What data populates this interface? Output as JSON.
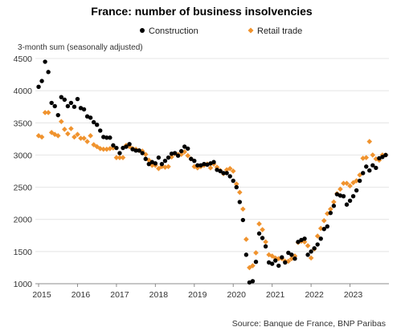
{
  "chart_data": {
    "type": "scatter",
    "title": "France: number of business insolvencies",
    "ylabel": "3-month sum (seasonally adjusted)",
    "xlabel": "",
    "source": "Source: Banque de France, BNP Paribas",
    "ylim": [
      1000,
      4500
    ],
    "yticks": [
      1000,
      1500,
      2000,
      2500,
      3000,
      3500,
      4000,
      4500
    ],
    "xlim": [
      "2014-12",
      "2024-01"
    ],
    "xticks": [
      "2015",
      "2016",
      "2017",
      "2018",
      "2019",
      "2020",
      "2021",
      "2022",
      "2023"
    ],
    "grid": true,
    "legend_position": "top-center",
    "x": [
      "2015-01",
      "2015-02",
      "2015-03",
      "2015-04",
      "2015-05",
      "2015-06",
      "2015-07",
      "2015-08",
      "2015-09",
      "2015-10",
      "2015-11",
      "2015-12",
      "2016-01",
      "2016-02",
      "2016-03",
      "2016-04",
      "2016-05",
      "2016-06",
      "2016-07",
      "2016-08",
      "2016-09",
      "2016-10",
      "2016-11",
      "2016-12",
      "2017-01",
      "2017-02",
      "2017-03",
      "2017-04",
      "2017-05",
      "2017-06",
      "2017-07",
      "2017-08",
      "2017-09",
      "2017-10",
      "2017-11",
      "2017-12",
      "2018-01",
      "2018-02",
      "2018-03",
      "2018-04",
      "2018-05",
      "2018-06",
      "2018-07",
      "2018-08",
      "2018-09",
      "2018-10",
      "2018-11",
      "2018-12",
      "2019-01",
      "2019-02",
      "2019-03",
      "2019-04",
      "2019-05",
      "2019-06",
      "2019-07",
      "2019-08",
      "2019-09",
      "2019-10",
      "2019-11",
      "2019-12",
      "2020-01",
      "2020-02",
      "2020-03",
      "2020-04",
      "2020-05",
      "2020-06",
      "2020-07",
      "2020-08",
      "2020-09",
      "2020-10",
      "2020-11",
      "2020-12",
      "2021-01",
      "2021-02",
      "2021-03",
      "2021-04",
      "2021-05",
      "2021-06",
      "2021-07",
      "2021-08",
      "2021-09",
      "2021-10",
      "2021-11",
      "2021-12",
      "2022-01",
      "2022-02",
      "2022-03",
      "2022-04",
      "2022-05",
      "2022-06",
      "2022-07",
      "2022-08",
      "2022-09",
      "2022-10",
      "2022-11",
      "2022-12",
      "2023-01",
      "2023-02",
      "2023-03",
      "2023-04",
      "2023-05",
      "2023-06",
      "2023-07",
      "2023-08",
      "2023-09",
      "2023-10",
      "2023-11",
      "2023-12"
    ],
    "series": [
      {
        "name": "Construction",
        "color": "#000000",
        "marker": "circle",
        "values": [
          4060,
          4150,
          4450,
          4290,
          3810,
          3760,
          3620,
          3900,
          3860,
          3760,
          3810,
          3750,
          3870,
          3730,
          3710,
          3600,
          3580,
          3510,
          3470,
          3380,
          3280,
          3270,
          3270,
          3150,
          3110,
          3030,
          3110,
          3130,
          3170,
          3090,
          3070,
          3070,
          3030,
          2940,
          2860,
          2890,
          2870,
          2960,
          2860,
          2910,
          2960,
          3020,
          3030,
          2990,
          3060,
          3130,
          3100,
          2940,
          2910,
          2840,
          2840,
          2860,
          2850,
          2870,
          2890,
          2770,
          2750,
          2720,
          2720,
          2670,
          2600,
          2500,
          2270,
          1990,
          1450,
          1020,
          1040,
          1340,
          1780,
          1710,
          1580,
          1330,
          1310,
          1360,
          1280,
          1410,
          1330,
          1480,
          1450,
          1390,
          1650,
          1680,
          1700,
          1450,
          1500,
          1550,
          1610,
          1700,
          1850,
          1890,
          2100,
          2210,
          2390,
          2370,
          2360,
          2230,
          2290,
          2360,
          2450,
          2600,
          2720,
          2820,
          2760,
          2840,
          2800,
          2950,
          2970,
          3000
        ]
      },
      {
        "name": "Retail trade",
        "color": "#F0932E",
        "marker": "diamond",
        "values": [
          3300,
          3280,
          3660,
          3660,
          3350,
          3320,
          3300,
          3520,
          3400,
          3330,
          3410,
          3280,
          3320,
          3260,
          3260,
          3210,
          3300,
          3160,
          3130,
          3100,
          3090,
          3090,
          3100,
          3110,
          2960,
          2960,
          2960,
          3150,
          3130,
          3100,
          3090,
          3070,
          3060,
          3010,
          2920,
          2840,
          2840,
          2790,
          2820,
          2810,
          2820,
          2970,
          3020,
          3010,
          3010,
          3050,
          2990,
          2940,
          2820,
          2800,
          2820,
          2840,
          2860,
          2800,
          2860,
          2810,
          2760,
          2710,
          2770,
          2790,
          2750,
          2550,
          2420,
          2160,
          1690,
          1250,
          1280,
          1480,
          1930,
          1840,
          1650,
          1450,
          1430,
          1400,
          1390,
          1390,
          1350,
          1350,
          1390,
          1430,
          1640,
          1660,
          1650,
          1590,
          1400,
          1540,
          1740,
          1860,
          1980,
          2090,
          2160,
          2270,
          2400,
          2470,
          2560,
          2560,
          2520,
          2570,
          2600,
          2690,
          2950,
          2960,
          3210,
          3000,
          2940,
          2920,
          3000,
          3000
        ]
      }
    ]
  }
}
